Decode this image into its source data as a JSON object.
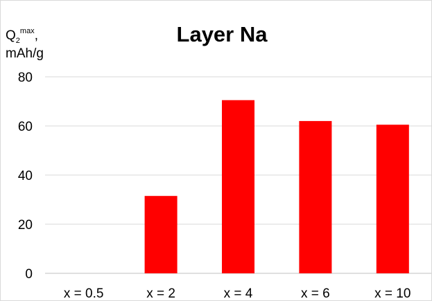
{
  "chart_data": {
    "type": "bar",
    "title": "Layer Na",
    "ylabel": {
      "quantity": "Q",
      "subscript": "2",
      "superscript": "max",
      "suffix": ",",
      "unit": "mAh/g"
    },
    "xlabel": "",
    "categories": [
      "x = 0.5",
      "x = 2",
      "x = 4",
      "x = 6",
      "x = 10"
    ],
    "values": [
      0,
      31.5,
      70.5,
      62,
      60.5
    ],
    "ylim": [
      0,
      80
    ],
    "yticks": [
      0,
      20,
      40,
      60,
      80
    ],
    "grid": true,
    "legend": "none",
    "colors": {
      "bar": "#ff0000",
      "grid": "#d9d9d9",
      "axis": "#bfbfbf"
    }
  }
}
